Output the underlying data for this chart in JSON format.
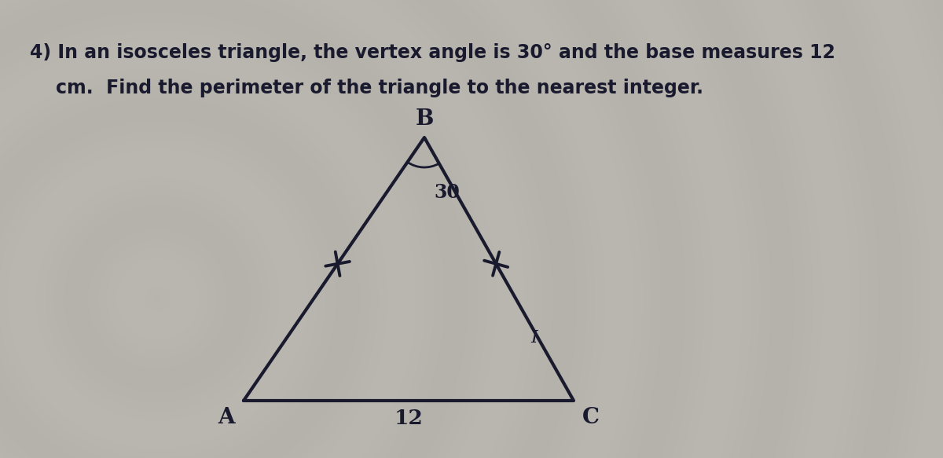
{
  "title_line1": "4) In an isosceles triangle, the vertex angle is 30° and the base measures 12",
  "title_line2": "    cm.  Find the perimeter of the triangle to the nearest integer.",
  "bg_base": "#b8b4ac",
  "bg_light": "#d8d4cc",
  "triangle": {
    "A": [
      0.33,
      0.08
    ],
    "B": [
      0.5,
      0.78
    ],
    "C": [
      0.67,
      0.08
    ]
  },
  "label_A": "A",
  "label_B": "B",
  "label_C": "C",
  "label_base": "12",
  "label_angle": "30",
  "label_I": "I",
  "line_color": "#1a1a2e",
  "text_color": "#1a1a2e",
  "title_fontsize": 17,
  "label_fontsize": 18
}
